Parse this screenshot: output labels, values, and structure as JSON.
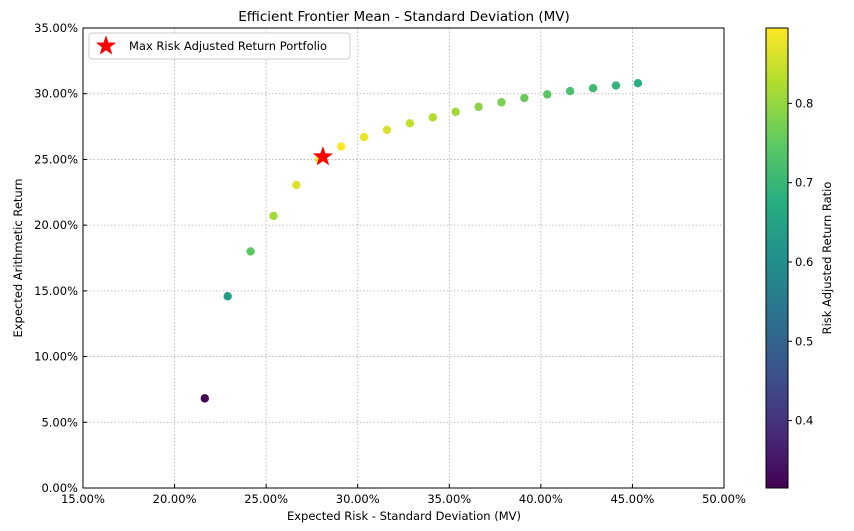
{
  "chart_data": {
    "type": "scatter",
    "title": "Efficient Frontier Mean - Standard Deviation (MV)",
    "xlabel": "Expected Risk - Standard Deviation (MV)",
    "ylabel": "Expected Arithmetic Return",
    "xlim": [
      0.15,
      0.5
    ],
    "ylim": [
      0.0,
      0.35
    ],
    "x_ticks": [
      0.15,
      0.2,
      0.25,
      0.3,
      0.35,
      0.4,
      0.45,
      0.5
    ],
    "x_tick_labels": [
      "15.00%",
      "20.00%",
      "25.00%",
      "30.00%",
      "35.00%",
      "40.00%",
      "45.00%",
      "50.00%"
    ],
    "y_ticks": [
      0.0,
      0.05,
      0.1,
      0.15,
      0.2,
      0.25,
      0.3,
      0.35
    ],
    "y_tick_labels": [
      "0.00%",
      "5.00%",
      "10.00%",
      "15.00%",
      "20.00%",
      "25.00%",
      "30.00%",
      "35.00%"
    ],
    "grid": true,
    "legend_position": "top-left",
    "legend_label": "Max Risk Adjusted Return Portfolio",
    "colorbar": {
      "label": "Risk Adjusted Return Ratio",
      "range": [
        0.315,
        0.895
      ],
      "ticks": [
        0.4,
        0.5,
        0.6,
        0.7,
        0.8
      ],
      "tick_labels": [
        "0.4",
        "0.5",
        "0.6",
        "0.7",
        "0.8"
      ],
      "colormap": "viridis"
    },
    "points": [
      {
        "x": 0.2165,
        "y": 0.0682,
        "c": 0.315
      },
      {
        "x": 0.229,
        "y": 0.1459,
        "c": 0.637
      },
      {
        "x": 0.2415,
        "y": 0.18,
        "c": 0.745
      },
      {
        "x": 0.254,
        "y": 0.207,
        "c": 0.815
      },
      {
        "x": 0.2665,
        "y": 0.2305,
        "c": 0.865
      },
      {
        "x": 0.279,
        "y": 0.25,
        "c": 0.895
      },
      {
        "x": 0.291,
        "y": 0.2598,
        "c": 0.893
      },
      {
        "x": 0.3035,
        "y": 0.267,
        "c": 0.88
      },
      {
        "x": 0.316,
        "y": 0.2725,
        "c": 0.862
      },
      {
        "x": 0.3285,
        "y": 0.2775,
        "c": 0.845
      },
      {
        "x": 0.341,
        "y": 0.282,
        "c": 0.827
      },
      {
        "x": 0.3535,
        "y": 0.2862,
        "c": 0.81
      },
      {
        "x": 0.366,
        "y": 0.29,
        "c": 0.792
      },
      {
        "x": 0.3785,
        "y": 0.2935,
        "c": 0.775
      },
      {
        "x": 0.391,
        "y": 0.2967,
        "c": 0.759
      },
      {
        "x": 0.4035,
        "y": 0.2995,
        "c": 0.742
      },
      {
        "x": 0.416,
        "y": 0.302,
        "c": 0.726
      },
      {
        "x": 0.4285,
        "y": 0.3042,
        "c": 0.71
      },
      {
        "x": 0.441,
        "y": 0.3062,
        "c": 0.694
      },
      {
        "x": 0.453,
        "y": 0.308,
        "c": 0.68
      }
    ],
    "highlight": {
      "x": 0.281,
      "y": 0.252,
      "marker": "star",
      "color": "#ff0000"
    }
  }
}
